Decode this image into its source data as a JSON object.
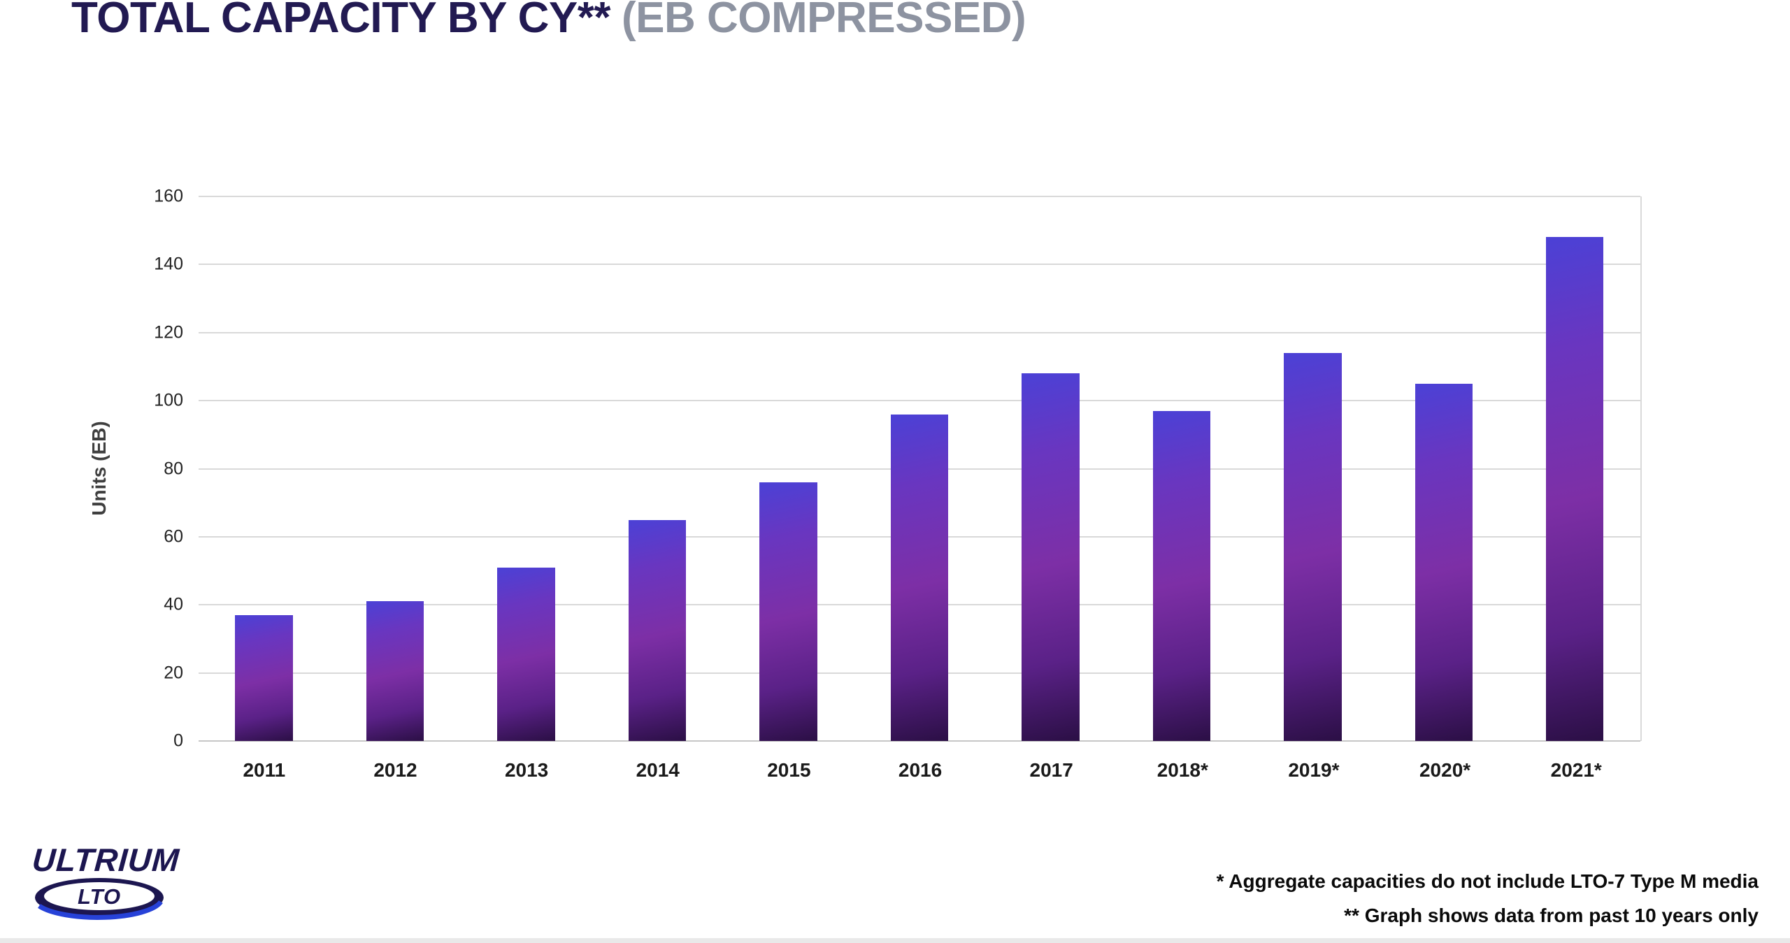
{
  "title": {
    "main": "TOTAL CAPACITY BY CY**",
    "suffix": "(EB COMPRESSED)"
  },
  "logo": {
    "brand": "ULTRIUM",
    "sub": "LTO"
  },
  "footnotes": [
    "* Aggregate capacities do not include LTO-7 Type M media",
    "** Graph shows data from past 10 years only"
  ],
  "colors": {
    "title_main": "#221a52",
    "title_suffix": "#8d93a1",
    "gridline": "#d9d9d9",
    "bar_gradient_start": "#4b41d6",
    "bar_gradient_mid": "#7d2fa6",
    "bar_gradient_end": "#2b0f45",
    "axis_text": "#222222"
  },
  "chart_data": {
    "type": "bar",
    "title": "TOTAL CAPACITY BY CY** (EB COMPRESSED)",
    "categories": [
      "2011",
      "2012",
      "2013",
      "2014",
      "2015",
      "2016",
      "2017",
      "2018*",
      "2019*",
      "2020*",
      "2021*"
    ],
    "values": [
      37,
      41,
      51,
      65,
      76,
      96,
      108,
      97,
      114,
      105,
      148
    ],
    "xlabel": "",
    "ylabel": "Units (EB)",
    "ylim": [
      0,
      160
    ],
    "yticks": [
      0,
      20,
      40,
      60,
      80,
      100,
      120,
      140,
      160
    ],
    "grid": "horizontal",
    "legend": "none"
  }
}
